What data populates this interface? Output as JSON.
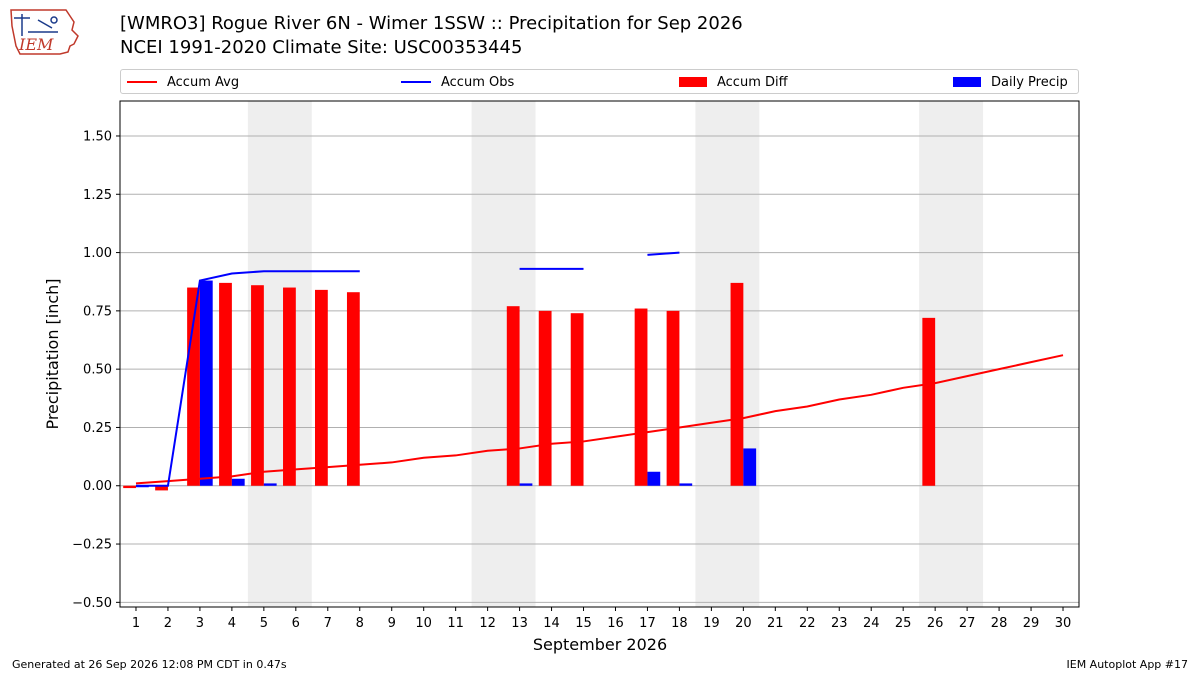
{
  "header": {
    "title_line1": "[WMRO3] Rogue River 6N - Wimer 1SSW :: Precipitation for Sep 2026",
    "title_line2": "NCEI 1991-2020 Climate Site: USC00353445",
    "logo_text": "IEM"
  },
  "footer": {
    "generated": "Generated at 26 Sep 2026 12:08 PM CDT in 0.47s",
    "app": "IEM Autoplot App #17"
  },
  "colors": {
    "avg": "#ff0000",
    "obs": "#0000ff",
    "diff": "#ff0000",
    "daily": "#0000ff",
    "weekend_shade": "#eeeeee",
    "grid": "#b0b0b0"
  },
  "chart_data": {
    "type": "bar",
    "xlabel": "September 2026",
    "ylabel": "Precipitation [inch]",
    "xlim": [
      0.5,
      30.5
    ],
    "ylim": [
      -0.52,
      1.65
    ],
    "yticks": [
      -0.5,
      -0.25,
      0.0,
      0.25,
      0.5,
      0.75,
      1.0,
      1.25,
      1.5
    ],
    "ytick_labels": [
      "−0.50",
      "−0.25",
      "0.00",
      "0.25",
      "0.50",
      "0.75",
      "1.00",
      "1.25",
      "1.50"
    ],
    "days": [
      1,
      2,
      3,
      4,
      5,
      6,
      7,
      8,
      9,
      10,
      11,
      12,
      13,
      14,
      15,
      16,
      17,
      18,
      19,
      20,
      21,
      22,
      23,
      24,
      25,
      26,
      27,
      28,
      29,
      30
    ],
    "grid": true,
    "legend_placement": "top",
    "shaded_weekends": [
      [
        4.5,
        6.5
      ],
      [
        11.5,
        13.5
      ],
      [
        18.5,
        20.5
      ],
      [
        25.5,
        27.5
      ]
    ],
    "series": [
      {
        "name": "Accum Avg",
        "kind": "line",
        "x": [
          1,
          2,
          3,
          4,
          5,
          6,
          7,
          8,
          9,
          10,
          11,
          12,
          13,
          14,
          15,
          16,
          17,
          18,
          19,
          20,
          21,
          22,
          23,
          24,
          25,
          26,
          27,
          28,
          29,
          30
        ],
        "values": [
          0.01,
          0.02,
          0.03,
          0.04,
          0.06,
          0.07,
          0.08,
          0.09,
          0.1,
          0.12,
          0.13,
          0.15,
          0.16,
          0.18,
          0.19,
          0.21,
          0.23,
          0.25,
          0.27,
          0.29,
          0.32,
          0.34,
          0.37,
          0.39,
          0.42,
          0.44,
          0.47,
          0.5,
          0.53,
          0.56
        ]
      },
      {
        "name": "Accum Obs",
        "kind": "line",
        "x": [
          1,
          2,
          3,
          4,
          5,
          6,
          7,
          8,
          9,
          10,
          11,
          12,
          13,
          14,
          15,
          16,
          17,
          18,
          19,
          20,
          21,
          22,
          23,
          24,
          25,
          26,
          27,
          28,
          29,
          30
        ],
        "values": [
          0.0,
          0.0,
          0.88,
          0.91,
          0.92,
          0.92,
          0.92,
          0.92,
          null,
          null,
          null,
          null,
          0.93,
          0.93,
          0.93,
          null,
          0.99,
          1.0,
          null,
          null,
          null,
          null,
          null,
          null,
          null,
          null,
          null,
          null,
          null,
          null
        ]
      },
      {
        "name": "Accum Diff",
        "kind": "bar",
        "x": [
          1,
          2,
          3,
          4,
          5,
          6,
          7,
          8,
          13,
          14,
          15,
          17,
          18,
          20,
          26
        ],
        "values": [
          -0.01,
          -0.02,
          0.85,
          0.87,
          0.86,
          0.85,
          0.84,
          0.83,
          0.77,
          0.75,
          0.74,
          0.76,
          0.75,
          0.87,
          0.72
        ]
      },
      {
        "name": "Daily Precip",
        "kind": "bar",
        "x": [
          1,
          3,
          4,
          5,
          13,
          17,
          18,
          20
        ],
        "values": [
          0.0,
          0.88,
          0.03,
          0.01,
          0.01,
          0.06,
          0.01,
          0.16
        ]
      }
    ]
  }
}
